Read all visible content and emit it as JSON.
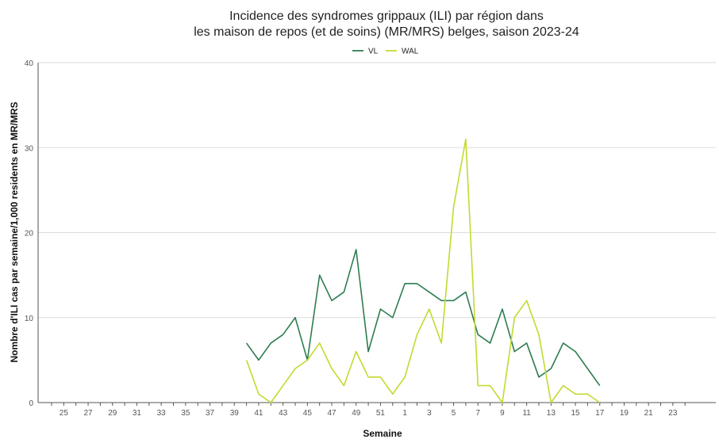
{
  "chart_data": {
    "type": "line",
    "title_lines": [
      "Incidence des syndromes grippaux (ILI) par région dans",
      "les maison de repos (et de soins) (MR/MRS) belges, saison 2023-24"
    ],
    "xlabel": "Semaine",
    "ylabel": "Nombre d'ILI cas par semaine/1,000 residents en MR/MRS",
    "ylim": [
      0,
      40
    ],
    "yticks": [
      0,
      10,
      20,
      30,
      40
    ],
    "grid": true,
    "legend_position": "top-center",
    "categories": [
      "24",
      "25",
      "26",
      "27",
      "28",
      "29",
      "30",
      "31",
      "32",
      "33",
      "34",
      "35",
      "36",
      "37",
      "38",
      "39",
      "40",
      "41",
      "42",
      "43",
      "44",
      "45",
      "46",
      "47",
      "48",
      "49",
      "50",
      "51",
      "52",
      "1",
      "2",
      "3",
      "4",
      "5",
      "6",
      "7",
      "8",
      "9",
      "10",
      "11",
      "12",
      "13",
      "14",
      "15",
      "16",
      "17",
      "18",
      "19",
      "20",
      "21",
      "22",
      "23",
      "24"
    ],
    "tick_labels": [
      "25",
      "27",
      "29",
      "31",
      "33",
      "35",
      "37",
      "39",
      "41",
      "43",
      "45",
      "47",
      "49",
      "51",
      "1",
      "3",
      "5",
      "7",
      "9",
      "11",
      "13",
      "15",
      "17",
      "19",
      "21",
      "23"
    ],
    "series": [
      {
        "name": "VL",
        "color": "#2e7d50",
        "values": [
          null,
          null,
          null,
          null,
          null,
          null,
          null,
          null,
          null,
          null,
          null,
          null,
          null,
          null,
          null,
          null,
          7,
          5,
          7,
          8,
          10,
          5,
          15,
          12,
          13,
          18,
          6,
          11,
          10,
          14,
          14,
          13,
          12,
          12,
          13,
          8,
          7,
          11,
          6,
          7,
          3,
          4,
          7,
          6,
          4,
          2,
          null,
          null,
          null,
          null,
          null,
          null,
          null
        ]
      },
      {
        "name": "WAL",
        "color": "#c5d92f",
        "values": [
          null,
          null,
          null,
          null,
          null,
          null,
          null,
          null,
          null,
          null,
          null,
          null,
          null,
          null,
          null,
          null,
          5,
          1,
          0,
          2,
          4,
          5,
          7,
          4,
          2,
          6,
          3,
          3,
          1,
          3,
          8,
          11,
          7,
          23,
          31,
          2,
          2,
          0,
          10,
          12,
          8,
          0,
          2,
          1,
          1,
          0,
          null,
          null,
          null,
          null,
          null,
          null,
          null
        ]
      }
    ]
  }
}
